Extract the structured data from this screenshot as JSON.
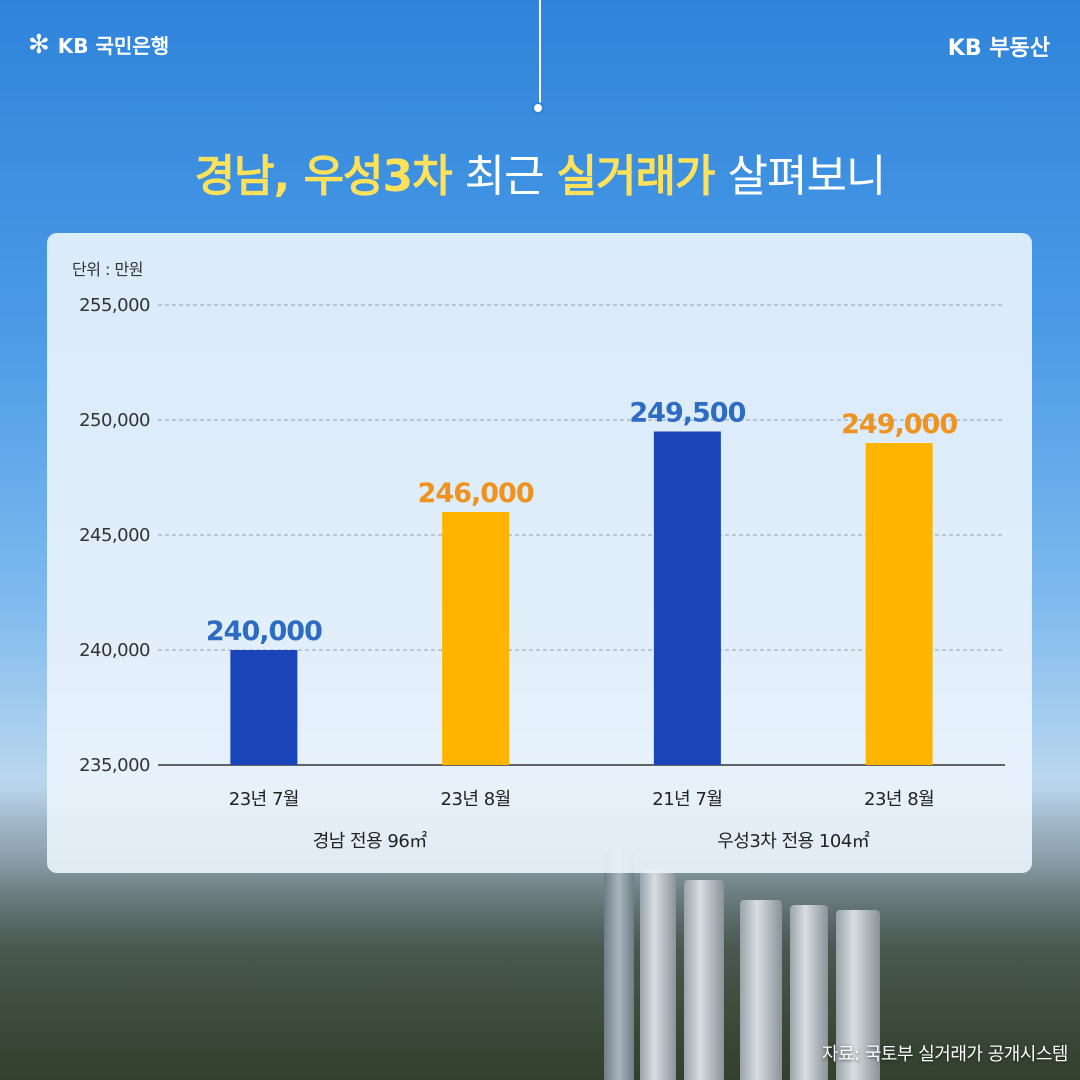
{
  "brand": {
    "left_logo_symbol": "✻",
    "left_logo_text": "KB 국민은행",
    "right_text": "KB 부동산"
  },
  "title": {
    "part1": "경남, 우성3차",
    "part2": " 최근 ",
    "part3": "실거래가",
    "part4": " 살펴보니"
  },
  "source": "자료: 국토부 실거래가 공개시스템",
  "colors": {
    "blue": "#1a44b8",
    "yellow": "#ffb400",
    "blue_label": "#2e6cc4",
    "orange_label": "#f0921e",
    "title_highlight": "#ffe15a"
  },
  "chart_data": {
    "type": "bar",
    "unit_label": "단위 : 만원",
    "ylim": [
      235000,
      255000
    ],
    "yticks": [
      235000,
      240000,
      245000,
      250000,
      255000
    ],
    "ytick_labels": [
      "235,000",
      "240,000",
      "245,000",
      "250,000",
      "255,000"
    ],
    "grid": true,
    "categories": [
      "23년 7월",
      "23년 8월",
      "21년 7월",
      "23년 8월"
    ],
    "values": [
      240000,
      246000,
      249500,
      249000
    ],
    "value_labels": [
      "240,000",
      "246,000",
      "249,500",
      "249,000"
    ],
    "bar_colors": [
      "#1a44b8",
      "#ffb400",
      "#1a44b8",
      "#ffb400"
    ],
    "label_colors": [
      "#2e6cc4",
      "#f0921e",
      "#2e6cc4",
      "#f0921e"
    ],
    "groups": [
      {
        "label": "경남 전용 96㎡",
        "categories": [
          0,
          1
        ]
      },
      {
        "label": "우성3차 전용 104㎡",
        "categories": [
          2,
          3
        ]
      }
    ]
  }
}
